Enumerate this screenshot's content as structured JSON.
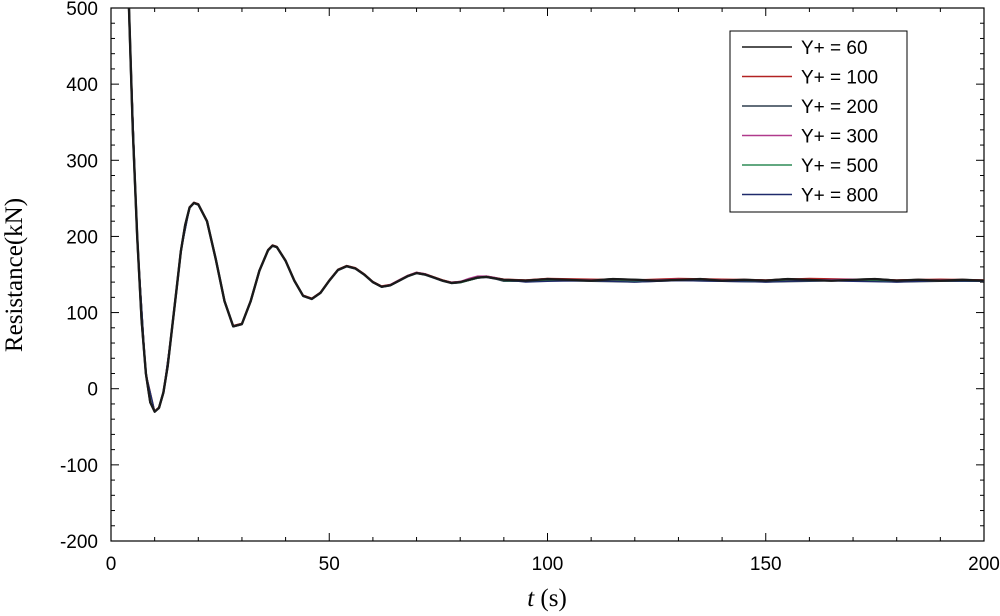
{
  "chart_data": {
    "type": "line",
    "title": "",
    "xlabel_italic": "t",
    "xlabel_unit": " (s)",
    "ylabel": "Resistance(kN)",
    "xlim": [
      0,
      200
    ],
    "ylim": [
      -200,
      500
    ],
    "xticks": [
      0,
      50,
      100,
      150,
      200
    ],
    "yticks": [
      -200,
      -100,
      0,
      100,
      200,
      300,
      400,
      500
    ],
    "grid": false,
    "legend_position": "top-right",
    "series": [
      {
        "name": "Y+ = 60",
        "color": "#1a1a1a",
        "x": [
          4,
          5,
          6,
          7,
          8,
          9,
          10,
          11,
          12,
          13,
          14,
          15,
          16,
          17,
          18,
          19,
          20,
          22,
          24,
          26,
          28,
          30,
          32,
          34,
          36,
          37,
          38,
          40,
          42,
          44,
          46,
          48,
          50,
          52,
          54,
          56,
          58,
          60,
          62,
          64,
          66,
          68,
          70,
          72,
          74,
          76,
          78,
          80,
          82,
          84,
          86,
          88,
          90,
          95,
          100,
          105,
          110,
          115,
          120,
          125,
          130,
          135,
          140,
          145,
          150,
          155,
          160,
          165,
          170,
          175,
          180,
          185,
          190,
          195,
          200
        ],
        "y": [
          520,
          340,
          200,
          90,
          20,
          -18,
          -30,
          -25,
          -5,
          30,
          80,
          130,
          180,
          215,
          238,
          244,
          242,
          220,
          170,
          115,
          82,
          85,
          115,
          155,
          182,
          188,
          186,
          168,
          142,
          122,
          118,
          126,
          142,
          156,
          161,
          158,
          150,
          140,
          134,
          136,
          142,
          148,
          152,
          150,
          146,
          142,
          139,
          140,
          143,
          146,
          147,
          145,
          143,
          142,
          144,
          143,
          142,
          144,
          143,
          142,
          143,
          144,
          142,
          143,
          142,
          144,
          143,
          142,
          143,
          144,
          142,
          143,
          142,
          143,
          142
        ]
      },
      {
        "name": "Y+ = 100",
        "color": "#b22222",
        "x": [
          4,
          6,
          8,
          10,
          11,
          12,
          14,
          16,
          18,
          19,
          20,
          22,
          24,
          26,
          28,
          30,
          32,
          34,
          36,
          37,
          38,
          40,
          42,
          44,
          46,
          48,
          50,
          52,
          54,
          56,
          58,
          60,
          62,
          64,
          66,
          68,
          70,
          72,
          74,
          76,
          78,
          80,
          82,
          84,
          86,
          88,
          90,
          95,
          100,
          110,
          120,
          130,
          140,
          150,
          160,
          170,
          180,
          190,
          200
        ],
        "y": [
          521,
          201,
          21,
          -29,
          -24,
          -4,
          81,
          181,
          239,
          245,
          243,
          221,
          171,
          116,
          83,
          86,
          116,
          156,
          183,
          189,
          187,
          169,
          143,
          123,
          119,
          127,
          143,
          157,
          162,
          159,
          151,
          141,
          135,
          137,
          143,
          149,
          153,
          151,
          147,
          143,
          140,
          141,
          144,
          147,
          148,
          146,
          144,
          143,
          145,
          144,
          143,
          145,
          144,
          143,
          145,
          144,
          143,
          144,
          143
        ]
      },
      {
        "name": "Y+ = 200",
        "color": "#2f3f4f",
        "x": [
          4,
          6,
          8,
          10,
          11,
          12,
          14,
          16,
          18,
          19,
          20,
          22,
          24,
          26,
          28,
          30,
          32,
          34,
          36,
          37,
          38,
          40,
          42,
          44,
          46,
          48,
          50,
          52,
          54,
          56,
          58,
          60,
          62,
          64,
          66,
          68,
          70,
          72,
          74,
          76,
          78,
          80,
          82,
          84,
          86,
          88,
          90,
          95,
          100,
          110,
          120,
          130,
          140,
          150,
          160,
          170,
          180,
          190,
          200
        ],
        "y": [
          519,
          199,
          19,
          -31,
          -26,
          -6,
          79,
          179,
          237,
          243,
          241,
          219,
          169,
          114,
          81,
          84,
          114,
          154,
          181,
          187,
          185,
          167,
          141,
          121,
          117,
          125,
          141,
          155,
          160,
          157,
          149,
          139,
          133,
          135,
          141,
          147,
          151,
          149,
          145,
          141,
          138,
          139,
          142,
          145,
          146,
          144,
          141,
          141,
          142,
          141,
          140,
          142,
          141,
          140,
          141,
          142,
          140,
          141,
          141
        ]
      },
      {
        "name": "Y+ = 300",
        "color": "#b03a8c",
        "x": [
          4,
          6,
          8,
          10,
          11,
          12,
          14,
          16,
          18,
          19,
          20,
          22,
          24,
          26,
          28,
          30,
          32,
          34,
          36,
          37,
          38,
          40,
          42,
          44,
          46,
          48,
          50,
          52,
          54,
          56,
          58,
          60,
          62,
          64,
          66,
          68,
          70,
          72,
          74,
          76,
          78,
          80,
          82,
          84,
          86,
          88,
          90,
          95,
          100,
          110,
          120,
          130,
          140,
          150,
          160,
          170,
          180,
          190,
          200
        ],
        "y": [
          520,
          200,
          20,
          -30,
          -25,
          -5,
          80,
          180,
          238,
          244,
          242,
          220,
          170,
          115,
          82,
          85,
          115,
          155,
          182,
          188,
          186,
          168,
          142,
          122,
          118,
          126,
          142,
          156,
          161,
          158,
          150,
          140,
          134,
          137,
          143,
          149,
          153,
          151,
          146,
          142,
          140,
          141,
          145,
          148,
          148,
          146,
          143,
          142,
          143,
          143,
          142,
          144,
          143,
          142,
          143,
          144,
          142,
          143,
          142
        ]
      },
      {
        "name": "Y+ = 500",
        "color": "#2e8b57",
        "x": [
          4,
          6,
          8,
          10,
          11,
          12,
          14,
          16,
          18,
          19,
          20,
          22,
          24,
          26,
          28,
          30,
          32,
          34,
          36,
          37,
          38,
          40,
          42,
          44,
          46,
          48,
          50,
          52,
          54,
          56,
          58,
          60,
          62,
          64,
          66,
          68,
          70,
          72,
          74,
          76,
          78,
          80,
          82,
          84,
          86,
          88,
          90,
          95,
          100,
          110,
          120,
          130,
          140,
          150,
          160,
          170,
          180,
          190,
          200
        ],
        "y": [
          520,
          200,
          20,
          -30,
          -25,
          -5,
          80,
          180,
          238,
          244,
          242,
          220,
          170,
          115,
          82,
          85,
          115,
          155,
          182,
          188,
          186,
          168,
          142,
          122,
          118,
          126,
          142,
          156,
          161,
          158,
          150,
          140,
          134,
          136,
          142,
          148,
          152,
          150,
          146,
          142,
          139,
          139,
          142,
          145,
          147,
          145,
          142,
          141,
          142,
          142,
          141,
          143,
          142,
          141,
          142,
          143,
          141,
          142,
          141
        ]
      },
      {
        "name": "Y+ = 800",
        "color": "#1f2a6b",
        "x": [
          4,
          6,
          8,
          10,
          11,
          12,
          14,
          16,
          18,
          19,
          20,
          22,
          24,
          26,
          28,
          30,
          32,
          34,
          36,
          37,
          38,
          40,
          42,
          44,
          46,
          48,
          50,
          52,
          54,
          56,
          58,
          60,
          62,
          64,
          66,
          68,
          70,
          72,
          74,
          76,
          78,
          80,
          82,
          84,
          86,
          88,
          90,
          95,
          100,
          110,
          120,
          130,
          140,
          150,
          160,
          170,
          180,
          190,
          200
        ],
        "y": [
          520,
          200,
          20,
          -30,
          -25,
          -5,
          80,
          180,
          238,
          244,
          242,
          220,
          170,
          115,
          82,
          85,
          115,
          155,
          182,
          188,
          186,
          168,
          142,
          122,
          118,
          126,
          142,
          156,
          161,
          158,
          150,
          140,
          134,
          136,
          142,
          148,
          152,
          150,
          146,
          142,
          139,
          140,
          143,
          146,
          147,
          145,
          143,
          140,
          141,
          142,
          140,
          142,
          141,
          140,
          142,
          141,
          140,
          142,
          141
        ]
      }
    ]
  }
}
